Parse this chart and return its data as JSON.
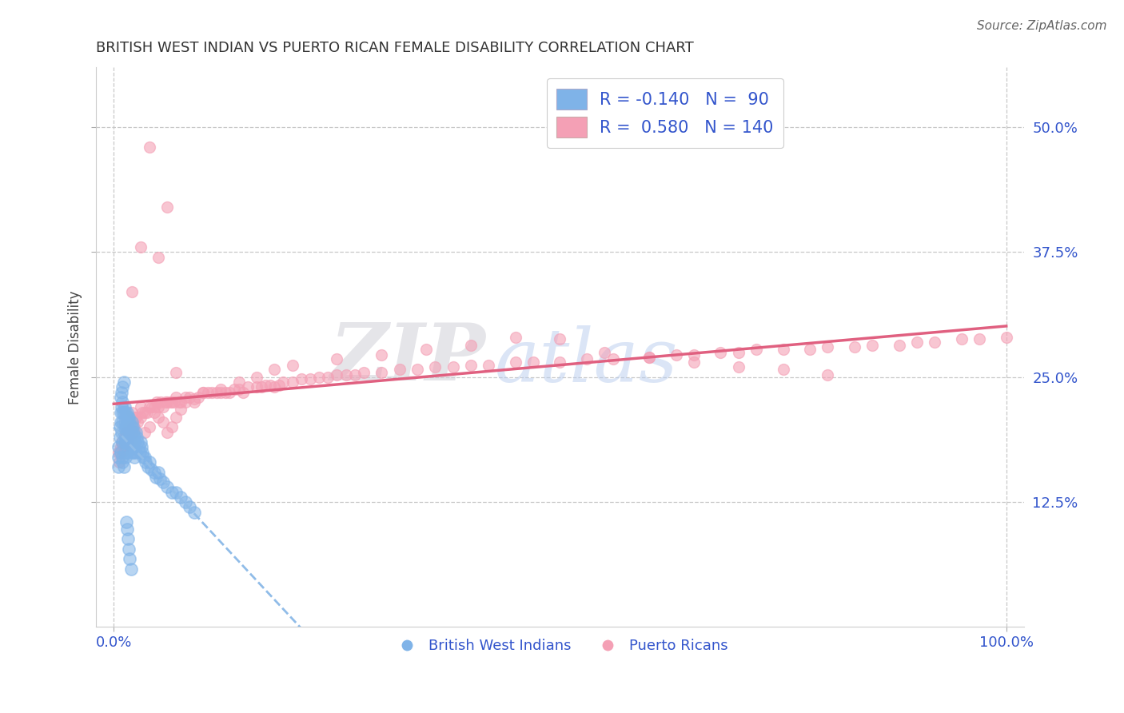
{
  "title": "BRITISH WEST INDIAN VS PUERTO RICAN FEMALE DISABILITY CORRELATION CHART",
  "source": "Source: ZipAtlas.com",
  "ylabel": "Female Disability",
  "xlim": [
    -0.02,
    1.02
  ],
  "ylim": [
    0.0,
    0.56
  ],
  "xtick_labels": [
    "0.0%",
    "100.0%"
  ],
  "xtick_positions": [
    0.0,
    1.0
  ],
  "ytick_labels": [
    "12.5%",
    "25.0%",
    "37.5%",
    "50.0%"
  ],
  "ytick_positions": [
    0.125,
    0.25,
    0.375,
    0.5
  ],
  "blue_color": "#7fb3e8",
  "pink_color": "#f4a0b5",
  "blue_line_color": "#90c0f0",
  "pink_line_color": "#e06080",
  "blue_R": -0.14,
  "blue_N": 90,
  "pink_R": 0.58,
  "pink_N": 140,
  "legend_label_blue": "British West Indians",
  "legend_label_pink": "Puerto Ricans",
  "tick_label_color": "#3355cc",
  "watermark_zip": "ZIP",
  "watermark_atlas": "atlas",
  "blue_points_x": [
    0.005,
    0.005,
    0.005,
    0.007,
    0.007,
    0.008,
    0.008,
    0.008,
    0.009,
    0.009,
    0.01,
    0.01,
    0.01,
    0.01,
    0.01,
    0.011,
    0.011,
    0.012,
    0.012,
    0.012,
    0.013,
    0.013,
    0.013,
    0.014,
    0.014,
    0.014,
    0.015,
    0.015,
    0.015,
    0.015,
    0.016,
    0.016,
    0.016,
    0.017,
    0.017,
    0.018,
    0.018,
    0.019,
    0.019,
    0.02,
    0.02,
    0.02,
    0.021,
    0.021,
    0.022,
    0.022,
    0.023,
    0.023,
    0.024,
    0.025,
    0.025,
    0.026,
    0.027,
    0.028,
    0.029,
    0.03,
    0.031,
    0.032,
    0.033,
    0.035,
    0.036,
    0.038,
    0.04,
    0.042,
    0.045,
    0.047,
    0.05,
    0.052,
    0.055,
    0.06,
    0.065,
    0.07,
    0.075,
    0.08,
    0.085,
    0.09,
    0.01,
    0.011,
    0.012,
    0.013,
    0.014,
    0.015,
    0.016,
    0.017,
    0.018,
    0.019,
    0.008,
    0.009,
    0.01,
    0.011
  ],
  "blue_points_y": [
    0.18,
    0.17,
    0.16,
    0.2,
    0.19,
    0.215,
    0.205,
    0.175,
    0.22,
    0.195,
    0.225,
    0.215,
    0.205,
    0.185,
    0.17,
    0.215,
    0.195,
    0.22,
    0.205,
    0.185,
    0.215,
    0.2,
    0.185,
    0.21,
    0.2,
    0.185,
    0.215,
    0.205,
    0.195,
    0.175,
    0.21,
    0.2,
    0.185,
    0.21,
    0.19,
    0.205,
    0.185,
    0.2,
    0.18,
    0.205,
    0.195,
    0.175,
    0.2,
    0.18,
    0.195,
    0.175,
    0.19,
    0.17,
    0.185,
    0.195,
    0.175,
    0.19,
    0.185,
    0.18,
    0.175,
    0.185,
    0.18,
    0.175,
    0.17,
    0.17,
    0.165,
    0.16,
    0.165,
    0.158,
    0.155,
    0.15,
    0.155,
    0.148,
    0.145,
    0.14,
    0.135,
    0.135,
    0.13,
    0.125,
    0.12,
    0.115,
    0.165,
    0.16,
    0.175,
    0.17,
    0.105,
    0.098,
    0.088,
    0.078,
    0.068,
    0.058,
    0.23,
    0.235,
    0.24,
    0.245
  ],
  "pink_points_x": [
    0.005,
    0.006,
    0.007,
    0.008,
    0.009,
    0.01,
    0.011,
    0.012,
    0.013,
    0.014,
    0.015,
    0.016,
    0.017,
    0.018,
    0.019,
    0.02,
    0.021,
    0.022,
    0.023,
    0.025,
    0.027,
    0.03,
    0.032,
    0.035,
    0.037,
    0.04,
    0.043,
    0.045,
    0.048,
    0.05,
    0.053,
    0.055,
    0.058,
    0.06,
    0.063,
    0.065,
    0.068,
    0.07,
    0.073,
    0.075,
    0.08,
    0.085,
    0.09,
    0.095,
    0.1,
    0.105,
    0.11,
    0.115,
    0.12,
    0.125,
    0.13,
    0.135,
    0.14,
    0.145,
    0.15,
    0.16,
    0.165,
    0.17,
    0.175,
    0.18,
    0.185,
    0.19,
    0.2,
    0.21,
    0.22,
    0.23,
    0.24,
    0.25,
    0.26,
    0.27,
    0.28,
    0.3,
    0.32,
    0.34,
    0.36,
    0.38,
    0.4,
    0.42,
    0.45,
    0.47,
    0.5,
    0.53,
    0.56,
    0.6,
    0.63,
    0.65,
    0.68,
    0.7,
    0.72,
    0.75,
    0.78,
    0.8,
    0.83,
    0.85,
    0.88,
    0.9,
    0.92,
    0.95,
    0.97,
    1.0,
    0.01,
    0.015,
    0.02,
    0.025,
    0.03,
    0.035,
    0.04,
    0.045,
    0.05,
    0.055,
    0.06,
    0.065,
    0.07,
    0.075,
    0.08,
    0.09,
    0.1,
    0.12,
    0.14,
    0.16,
    0.18,
    0.2,
    0.25,
    0.3,
    0.35,
    0.4,
    0.45,
    0.5,
    0.55,
    0.6,
    0.65,
    0.7,
    0.75,
    0.8,
    0.05,
    0.06,
    0.04,
    0.03,
    0.02,
    0.07
  ],
  "pink_points_y": [
    0.175,
    0.165,
    0.175,
    0.18,
    0.185,
    0.175,
    0.18,
    0.19,
    0.195,
    0.185,
    0.195,
    0.19,
    0.2,
    0.195,
    0.185,
    0.195,
    0.2,
    0.195,
    0.2,
    0.21,
    0.205,
    0.21,
    0.215,
    0.215,
    0.215,
    0.22,
    0.22,
    0.22,
    0.225,
    0.22,
    0.225,
    0.22,
    0.225,
    0.225,
    0.225,
    0.225,
    0.225,
    0.23,
    0.225,
    0.225,
    0.23,
    0.23,
    0.225,
    0.23,
    0.235,
    0.235,
    0.235,
    0.235,
    0.235,
    0.235,
    0.235,
    0.238,
    0.238,
    0.235,
    0.24,
    0.24,
    0.24,
    0.242,
    0.242,
    0.24,
    0.242,
    0.245,
    0.245,
    0.248,
    0.248,
    0.25,
    0.25,
    0.252,
    0.252,
    0.252,
    0.255,
    0.255,
    0.258,
    0.258,
    0.26,
    0.26,
    0.262,
    0.262,
    0.265,
    0.265,
    0.265,
    0.268,
    0.268,
    0.27,
    0.272,
    0.272,
    0.275,
    0.275,
    0.278,
    0.278,
    0.278,
    0.28,
    0.28,
    0.282,
    0.282,
    0.285,
    0.285,
    0.288,
    0.288,
    0.29,
    0.18,
    0.185,
    0.215,
    0.21,
    0.22,
    0.195,
    0.2,
    0.215,
    0.21,
    0.205,
    0.195,
    0.2,
    0.21,
    0.218,
    0.225,
    0.228,
    0.235,
    0.238,
    0.245,
    0.25,
    0.258,
    0.262,
    0.268,
    0.272,
    0.278,
    0.282,
    0.29,
    0.288,
    0.275,
    0.27,
    0.265,
    0.26,
    0.258,
    0.252,
    0.37,
    0.42,
    0.48,
    0.38,
    0.335,
    0.255
  ]
}
